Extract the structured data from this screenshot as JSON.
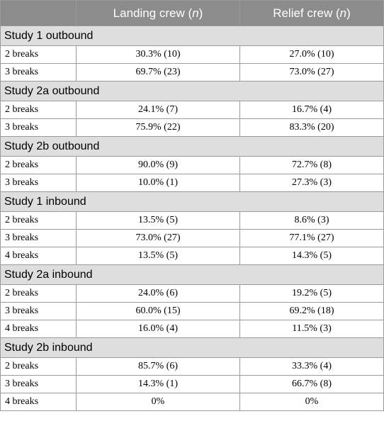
{
  "header": {
    "col1": "",
    "landing_label": "Landing crew (",
    "landing_n": "n",
    "landing_close": ")",
    "relief_label": "Relief crew (",
    "relief_n": "n",
    "relief_close": ")"
  },
  "sections": [
    {
      "title": "Study 1 outbound",
      "rows": [
        {
          "label": "2 breaks",
          "landing": "30.3% (10)",
          "relief": "27.0% (10)"
        },
        {
          "label": "3 breaks",
          "landing": "69.7% (23)",
          "relief": "73.0% (27)"
        }
      ]
    },
    {
      "title": "Study 2a outbound",
      "rows": [
        {
          "label": "2 breaks",
          "landing": "24.1% (7)",
          "relief": "16.7% (4)"
        },
        {
          "label": "3 breaks",
          "landing": "75.9% (22)",
          "relief": "83.3% (20)"
        }
      ]
    },
    {
      "title": "Study 2b outbound",
      "rows": [
        {
          "label": "2 breaks",
          "landing": "90.0% (9)",
          "relief": "72.7% (8)"
        },
        {
          "label": "3 breaks",
          "landing": "10.0% (1)",
          "relief": "27.3% (3)"
        }
      ]
    },
    {
      "title": "Study 1 inbound",
      "rows": [
        {
          "label": "2 breaks",
          "landing": "13.5% (5)",
          "relief": "8.6% (3)"
        },
        {
          "label": "3 breaks",
          "landing": "73.0% (27)",
          "relief": "77.1% (27)"
        },
        {
          "label": "4 breaks",
          "landing": "13.5% (5)",
          "relief": "14.3% (5)"
        }
      ]
    },
    {
      "title": "Study 2a inbound",
      "rows": [
        {
          "label": "2 breaks",
          "landing": "24.0% (6)",
          "relief": "19.2% (5)"
        },
        {
          "label": "3 breaks",
          "landing": "60.0% (15)",
          "relief": "69.2% (18)"
        },
        {
          "label": "4 breaks",
          "landing": "16.0% (4)",
          "relief": "11.5% (3)"
        }
      ]
    },
    {
      "title": "Study 2b inbound",
      "rows": [
        {
          "label": "2 breaks",
          "landing": "85.7% (6)",
          "relief": "33.3% (4)"
        },
        {
          "label": "3 breaks",
          "landing": "14.3% (1)",
          "relief": "66.7% (8)"
        },
        {
          "label": "4 breaks",
          "landing": "0%",
          "relief": "0%"
        }
      ]
    }
  ]
}
